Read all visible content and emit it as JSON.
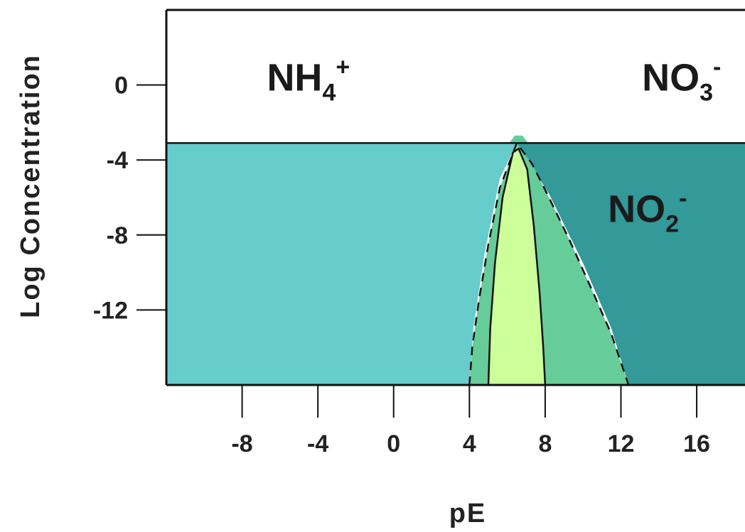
{
  "chart_data": {
    "type": "area",
    "title": "",
    "xlabel": "pE",
    "ylabel": "Log Concentration",
    "xlim": [
      -12,
      19
    ],
    "ylim": [
      -16,
      4
    ],
    "xticks": [
      -8,
      -4,
      0,
      4,
      8,
      12,
      16
    ],
    "xtick_labels": [
      "-8",
      "-4",
      "0",
      "4",
      "8",
      "12",
      "16"
    ],
    "yticks": [
      0,
      -4,
      -8,
      -12
    ],
    "ytick_labels": [
      "0",
      "-4",
      "-8",
      "-12"
    ],
    "grid": false,
    "colors": {
      "nh4_region": "#66cccc",
      "no3_region": "#339999",
      "no2_wide_region": "#66cc99",
      "no2_core_region": "#ccff99",
      "boundary": "#111111"
    },
    "regions": [
      {
        "species_text": "NH",
        "species_sub": "4",
        "species_sup": "+",
        "label_pos": [
          -4.5,
          -0.3
        ],
        "points": [
          [
            -12,
            -3.1
          ],
          [
            -12,
            -16
          ],
          [
            4,
            -16
          ],
          [
            4.2,
            -13
          ],
          [
            4.8,
            -9
          ],
          [
            5.6,
            -5
          ],
          [
            6.5,
            -3.1
          ]
        ]
      },
      {
        "species_text": "NO",
        "species_sub": "3",
        "species_sup": "-",
        "label_pos": [
          15.2,
          -0.3
        ],
        "points": [
          [
            6.5,
            -3.1
          ],
          [
            19,
            -3.1
          ],
          [
            19,
            -16
          ],
          [
            12.4,
            -16
          ],
          [
            11.5,
            -13
          ],
          [
            10,
            -9.5
          ],
          [
            8.2,
            -5.8
          ],
          [
            6.5,
            -3.1
          ]
        ]
      },
      {
        "species_text": "NO",
        "species_sub": "2",
        "species_sup": "-",
        "label_pos": [
          13.4,
          -7.3
        ],
        "points": []
      }
    ],
    "series": [
      {
        "style": "dashed",
        "x": [
          4,
          4.15,
          4.5,
          5.0,
          5.6,
          6.5,
          7.3,
          8.2,
          9.3,
          10.5,
          11.5,
          12.4
        ],
        "y": [
          -16,
          -14,
          -11.5,
          -8.5,
          -5.5,
          -3.1,
          -4.2,
          -6.0,
          -8.3,
          -11,
          -13.3,
          -16
        ]
      },
      {
        "style": "solid",
        "x": [
          5,
          5.1,
          5.35,
          5.75,
          6.3,
          6.6,
          7.05,
          7.4,
          7.7,
          7.9,
          8.0
        ],
        "y": [
          -16,
          -13,
          -9.5,
          -6.0,
          -3.6,
          -3.4,
          -4.5,
          -7.5,
          -11,
          -14,
          -16
        ]
      },
      {
        "style": "solid",
        "x": [
          -12,
          19
        ],
        "y": [
          -3.1,
          -3.1
        ]
      }
    ],
    "peak_cap": {
      "x": 6.6,
      "y": -2.7
    }
  }
}
